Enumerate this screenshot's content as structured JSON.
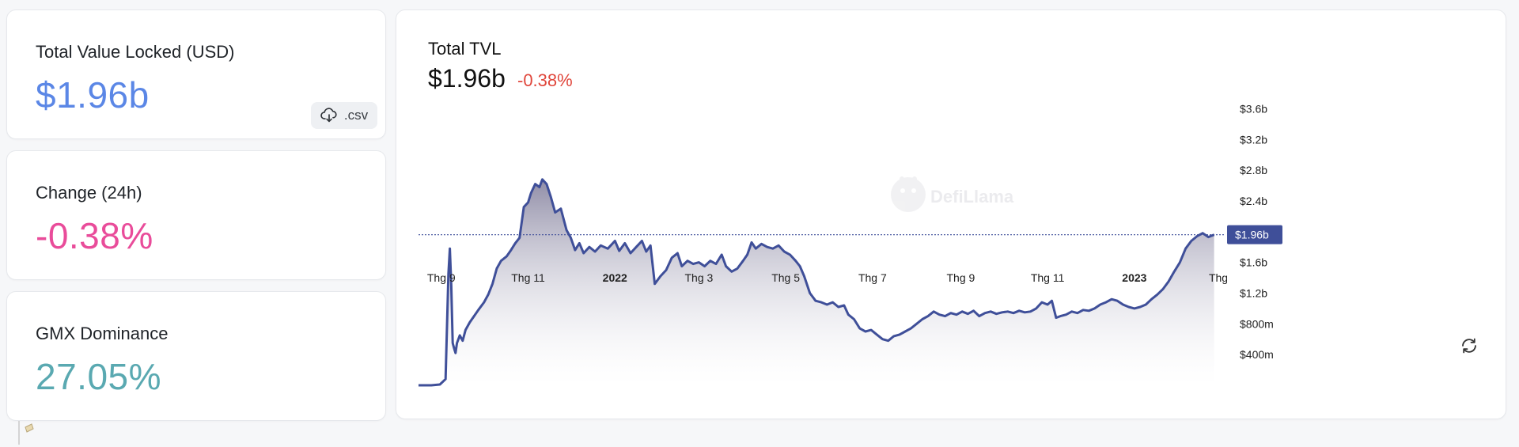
{
  "stats": {
    "tvl": {
      "label": "Total Value Locked (USD)",
      "value": "$1.96b",
      "color": "#5b87e6"
    },
    "change": {
      "label": "Change (24h)",
      "value": "-0.38%",
      "color": "#e94c9a"
    },
    "dominance": {
      "label": "GMX Dominance",
      "value": "27.05%",
      "color": "#5aa9b1"
    },
    "csv_label": ".csv"
  },
  "chart_header": {
    "title": "Total TVL",
    "value": "$1.96b",
    "change": "-0.38%",
    "change_color": "#e0463b"
  },
  "watermark": "DefiLlama",
  "icons": [
    "download-icon",
    "refresh-icon",
    "defillama-logo-icon"
  ],
  "chart_data": {
    "type": "area",
    "title": "Total TVL",
    "line_color": "#3f4f99",
    "current_value_label": "$1.96b",
    "current_value": 1.96,
    "y_unit": "USD billions",
    "ylim": [
      0,
      3.8
    ],
    "y_ticks": [
      {
        "value": 0.4,
        "label": "$400m"
      },
      {
        "value": 0.8,
        "label": "$800m"
      },
      {
        "value": 1.2,
        "label": "$1.2b"
      },
      {
        "value": 1.6,
        "label": "$1.6b"
      },
      {
        "value": 2.0,
        "label": "$2.0b"
      },
      {
        "value": 2.4,
        "label": "$2.4b"
      },
      {
        "value": 2.8,
        "label": "$2.8b"
      },
      {
        "value": 3.2,
        "label": "$3.2b"
      },
      {
        "value": 3.6,
        "label": "$3.6b"
      }
    ],
    "hidden_tick_values": [
      2.0
    ],
    "x_ticks": [
      {
        "date": "2021-09-01",
        "label": "Thg 9",
        "bold": false
      },
      {
        "date": "2021-11-01",
        "label": "Thg 11",
        "bold": false
      },
      {
        "date": "2022-01-01",
        "label": "2022",
        "bold": true
      },
      {
        "date": "2022-03-01",
        "label": "Thg 3",
        "bold": false
      },
      {
        "date": "2022-05-01",
        "label": "Thg 5",
        "bold": false
      },
      {
        "date": "2022-07-01",
        "label": "Thg 7",
        "bold": false
      },
      {
        "date": "2022-09-01",
        "label": "Thg 9",
        "bold": false
      },
      {
        "date": "2022-11-01",
        "label": "Thg 11",
        "bold": false
      },
      {
        "date": "2023-01-01",
        "label": "2023",
        "bold": true
      },
      {
        "date": "2023-03-01",
        "label": "Thg",
        "bold": false
      }
    ],
    "x_range": [
      "2021-08-16",
      "2023-03-06"
    ],
    "series": [
      {
        "points": [
          [
            "2021-08-16",
            0.0
          ],
          [
            "2021-08-25",
            0.0
          ],
          [
            "2021-08-31",
            0.01
          ],
          [
            "2021-09-04",
            0.08
          ],
          [
            "2021-09-06",
            1.45
          ],
          [
            "2021-09-07",
            1.78
          ],
          [
            "2021-09-08",
            1.3
          ],
          [
            "2021-09-09",
            0.55
          ],
          [
            "2021-09-10",
            0.48
          ],
          [
            "2021-09-11",
            0.42
          ],
          [
            "2021-09-12",
            0.55
          ],
          [
            "2021-09-14",
            0.65
          ],
          [
            "2021-09-16",
            0.58
          ],
          [
            "2021-09-18",
            0.72
          ],
          [
            "2021-09-21",
            0.82
          ],
          [
            "2021-09-24",
            0.9
          ],
          [
            "2021-09-27",
            0.98
          ],
          [
            "2021-10-01",
            1.08
          ],
          [
            "2021-10-04",
            1.18
          ],
          [
            "2021-10-07",
            1.32
          ],
          [
            "2021-10-10",
            1.52
          ],
          [
            "2021-10-13",
            1.62
          ],
          [
            "2021-10-17",
            1.68
          ],
          [
            "2021-10-20",
            1.76
          ],
          [
            "2021-10-23",
            1.85
          ],
          [
            "2021-10-26",
            1.92
          ],
          [
            "2021-10-29",
            2.32
          ],
          [
            "2021-11-01",
            2.38
          ],
          [
            "2021-11-03",
            2.5
          ],
          [
            "2021-11-06",
            2.62
          ],
          [
            "2021-11-09",
            2.58
          ],
          [
            "2021-11-11",
            2.68
          ],
          [
            "2021-11-14",
            2.62
          ],
          [
            "2021-11-17",
            2.45
          ],
          [
            "2021-11-20",
            2.25
          ],
          [
            "2021-11-24",
            2.3
          ],
          [
            "2021-11-28",
            2.02
          ],
          [
            "2021-12-01",
            1.92
          ],
          [
            "2021-12-04",
            1.76
          ],
          [
            "2021-12-07",
            1.85
          ],
          [
            "2021-12-10",
            1.72
          ],
          [
            "2021-12-14",
            1.8
          ],
          [
            "2021-12-18",
            1.74
          ],
          [
            "2021-12-22",
            1.82
          ],
          [
            "2021-12-27",
            1.78
          ],
          [
            "2022-01-01",
            1.88
          ],
          [
            "2022-01-04",
            1.75
          ],
          [
            "2022-01-08",
            1.85
          ],
          [
            "2022-01-12",
            1.72
          ],
          [
            "2022-01-16",
            1.8
          ],
          [
            "2022-01-20",
            1.88
          ],
          [
            "2022-01-23",
            1.74
          ],
          [
            "2022-01-26",
            1.82
          ],
          [
            "2022-01-29",
            1.32
          ],
          [
            "2022-02-02",
            1.42
          ],
          [
            "2022-02-06",
            1.5
          ],
          [
            "2022-02-10",
            1.66
          ],
          [
            "2022-02-14",
            1.72
          ],
          [
            "2022-02-17",
            1.55
          ],
          [
            "2022-02-21",
            1.62
          ],
          [
            "2022-02-25",
            1.58
          ],
          [
            "2022-03-01",
            1.6
          ],
          [
            "2022-03-05",
            1.55
          ],
          [
            "2022-03-09",
            1.62
          ],
          [
            "2022-03-13",
            1.58
          ],
          [
            "2022-03-17",
            1.7
          ],
          [
            "2022-03-20",
            1.55
          ],
          [
            "2022-03-24",
            1.48
          ],
          [
            "2022-03-28",
            1.52
          ],
          [
            "2022-04-01",
            1.62
          ],
          [
            "2022-04-04",
            1.7
          ],
          [
            "2022-04-07",
            1.86
          ],
          [
            "2022-04-10",
            1.78
          ],
          [
            "2022-04-14",
            1.84
          ],
          [
            "2022-04-18",
            1.8
          ],
          [
            "2022-04-22",
            1.78
          ],
          [
            "2022-04-26",
            1.82
          ],
          [
            "2022-04-30",
            1.74
          ],
          [
            "2022-05-04",
            1.7
          ],
          [
            "2022-05-08",
            1.62
          ],
          [
            "2022-05-11",
            1.55
          ],
          [
            "2022-05-14",
            1.42
          ],
          [
            "2022-05-18",
            1.2
          ],
          [
            "2022-05-22",
            1.1
          ],
          [
            "2022-05-26",
            1.08
          ],
          [
            "2022-05-30",
            1.05
          ],
          [
            "2022-06-03",
            1.08
          ],
          [
            "2022-06-07",
            1.02
          ],
          [
            "2022-06-11",
            1.04
          ],
          [
            "2022-06-14",
            0.92
          ],
          [
            "2022-06-18",
            0.86
          ],
          [
            "2022-06-22",
            0.74
          ],
          [
            "2022-06-26",
            0.7
          ],
          [
            "2022-06-30",
            0.72
          ],
          [
            "2022-07-04",
            0.66
          ],
          [
            "2022-07-08",
            0.6
          ],
          [
            "2022-07-12",
            0.58
          ],
          [
            "2022-07-16",
            0.64
          ],
          [
            "2022-07-20",
            0.66
          ],
          [
            "2022-07-24",
            0.7
          ],
          [
            "2022-07-28",
            0.74
          ],
          [
            "2022-08-01",
            0.8
          ],
          [
            "2022-08-05",
            0.86
          ],
          [
            "2022-08-09",
            0.9
          ],
          [
            "2022-08-13",
            0.96
          ],
          [
            "2022-08-17",
            0.92
          ],
          [
            "2022-08-21",
            0.9
          ],
          [
            "2022-08-25",
            0.94
          ],
          [
            "2022-08-29",
            0.92
          ],
          [
            "2022-09-02",
            0.96
          ],
          [
            "2022-09-06",
            0.93
          ],
          [
            "2022-09-10",
            0.97
          ],
          [
            "2022-09-14",
            0.9
          ],
          [
            "2022-09-18",
            0.94
          ],
          [
            "2022-09-22",
            0.96
          ],
          [
            "2022-09-26",
            0.93
          ],
          [
            "2022-09-30",
            0.95
          ],
          [
            "2022-10-04",
            0.96
          ],
          [
            "2022-10-08",
            0.94
          ],
          [
            "2022-10-12",
            0.97
          ],
          [
            "2022-10-16",
            0.95
          ],
          [
            "2022-10-20",
            0.96
          ],
          [
            "2022-10-24",
            1.0
          ],
          [
            "2022-10-28",
            1.08
          ],
          [
            "2022-11-01",
            1.05
          ],
          [
            "2022-11-04",
            1.1
          ],
          [
            "2022-11-07",
            0.88
          ],
          [
            "2022-11-10",
            0.9
          ],
          [
            "2022-11-14",
            0.92
          ],
          [
            "2022-11-18",
            0.96
          ],
          [
            "2022-11-22",
            0.94
          ],
          [
            "2022-11-26",
            0.98
          ],
          [
            "2022-11-30",
            0.97
          ],
          [
            "2022-12-04",
            1.0
          ],
          [
            "2022-12-08",
            1.05
          ],
          [
            "2022-12-12",
            1.08
          ],
          [
            "2022-12-16",
            1.12
          ],
          [
            "2022-12-20",
            1.1
          ],
          [
            "2022-12-24",
            1.05
          ],
          [
            "2022-12-28",
            1.02
          ],
          [
            "2023-01-01",
            1.0
          ],
          [
            "2023-01-05",
            1.02
          ],
          [
            "2023-01-09",
            1.05
          ],
          [
            "2023-01-13",
            1.12
          ],
          [
            "2023-01-17",
            1.18
          ],
          [
            "2023-01-21",
            1.25
          ],
          [
            "2023-01-25",
            1.35
          ],
          [
            "2023-01-29",
            1.48
          ],
          [
            "2023-02-02",
            1.6
          ],
          [
            "2023-02-06",
            1.78
          ],
          [
            "2023-02-10",
            1.88
          ],
          [
            "2023-02-14",
            1.94
          ],
          [
            "2023-02-18",
            1.98
          ],
          [
            "2023-02-22",
            1.93
          ],
          [
            "2023-02-26",
            1.96
          ]
        ]
      }
    ],
    "grid": false,
    "legend": "none"
  }
}
